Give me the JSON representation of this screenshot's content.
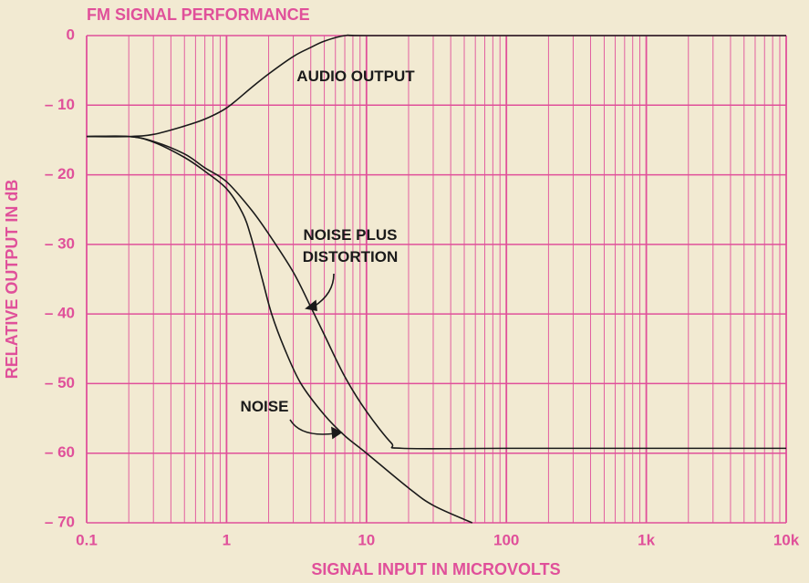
{
  "chart_data": {
    "type": "line",
    "title": "FM SIGNAL PERFORMANCE",
    "xlabel": "SIGNAL INPUT IN MICROVOLTS",
    "ylabel": "RELATIVE OUTPUT IN dB",
    "xscale": "log",
    "xlim": [
      0.1,
      10000
    ],
    "ylim": [
      -70,
      0
    ],
    "xticks": [
      0.1,
      1,
      10,
      100,
      {
        "value": 1000,
        "label": "1k"
      },
      {
        "value": 10000,
        "label": "10k"
      }
    ],
    "xminor": [
      0.2,
      0.3,
      0.4,
      0.5,
      0.6,
      0.7,
      0.8,
      0.9,
      2,
      3,
      4,
      5,
      6,
      7,
      8,
      9,
      20,
      30,
      40,
      50,
      60,
      70,
      80,
      90,
      200,
      300,
      400,
      500,
      600,
      700,
      800,
      900,
      2000,
      3000,
      4000,
      5000,
      6000,
      7000,
      8000,
      9000
    ],
    "yticks": [
      0,
      {
        "value": -10,
        "label": "– 10"
      },
      {
        "value": -20,
        "label": "– 20"
      },
      {
        "value": -30,
        "label": "– 30"
      },
      {
        "value": -40,
        "label": "– 40"
      },
      {
        "value": -50,
        "label": "– 50"
      },
      {
        "value": -60,
        "label": "– 60"
      },
      {
        "value": -70,
        "label": "– 70"
      }
    ],
    "grid": true,
    "grid_color": "#e0509a",
    "series": [
      {
        "name": "AUDIO OUTPUT",
        "color": "#1a1a1a",
        "x": [
          0.1,
          0.2,
          0.3,
          0.5,
          0.7,
          1,
          1.5,
          2,
          3,
          4,
          5,
          7,
          10,
          100,
          1000,
          10000
        ],
        "values": [
          -14.5,
          -14.5,
          -14.2,
          -13,
          -12,
          -10.4,
          -7.5,
          -5.5,
          -3,
          -1.7,
          -0.8,
          0,
          0,
          0,
          0,
          0
        ]
      },
      {
        "name": "NOISE PLUS DISTORTION",
        "color": "#1a1a1a",
        "x": [
          0.1,
          0.2,
          0.3,
          0.5,
          0.7,
          1,
          1.5,
          2,
          3,
          4,
          5,
          7,
          10,
          15,
          18,
          100,
          1000,
          10000
        ],
        "values": [
          -14.5,
          -14.5,
          -15.2,
          -17,
          -19,
          -21,
          -25,
          -28.5,
          -34,
          -39,
          -43,
          -49,
          -54,
          -58.5,
          -59.3,
          -59.3,
          -59.3,
          -59.3
        ]
      },
      {
        "name": "NOISE",
        "color": "#1a1a1a",
        "x": [
          0.1,
          0.2,
          0.3,
          0.5,
          0.7,
          1,
          1.3,
          1.5,
          1.8,
          2.1,
          2.6,
          3.4,
          5,
          7,
          10,
          20,
          30,
          57
        ],
        "values": [
          -14.5,
          -14.5,
          -15.3,
          -17.5,
          -19.5,
          -22,
          -25.5,
          -29,
          -35,
          -40,
          -45,
          -50,
          -54.5,
          -57.5,
          -60,
          -65,
          -67.5,
          -70
        ]
      }
    ]
  }
}
